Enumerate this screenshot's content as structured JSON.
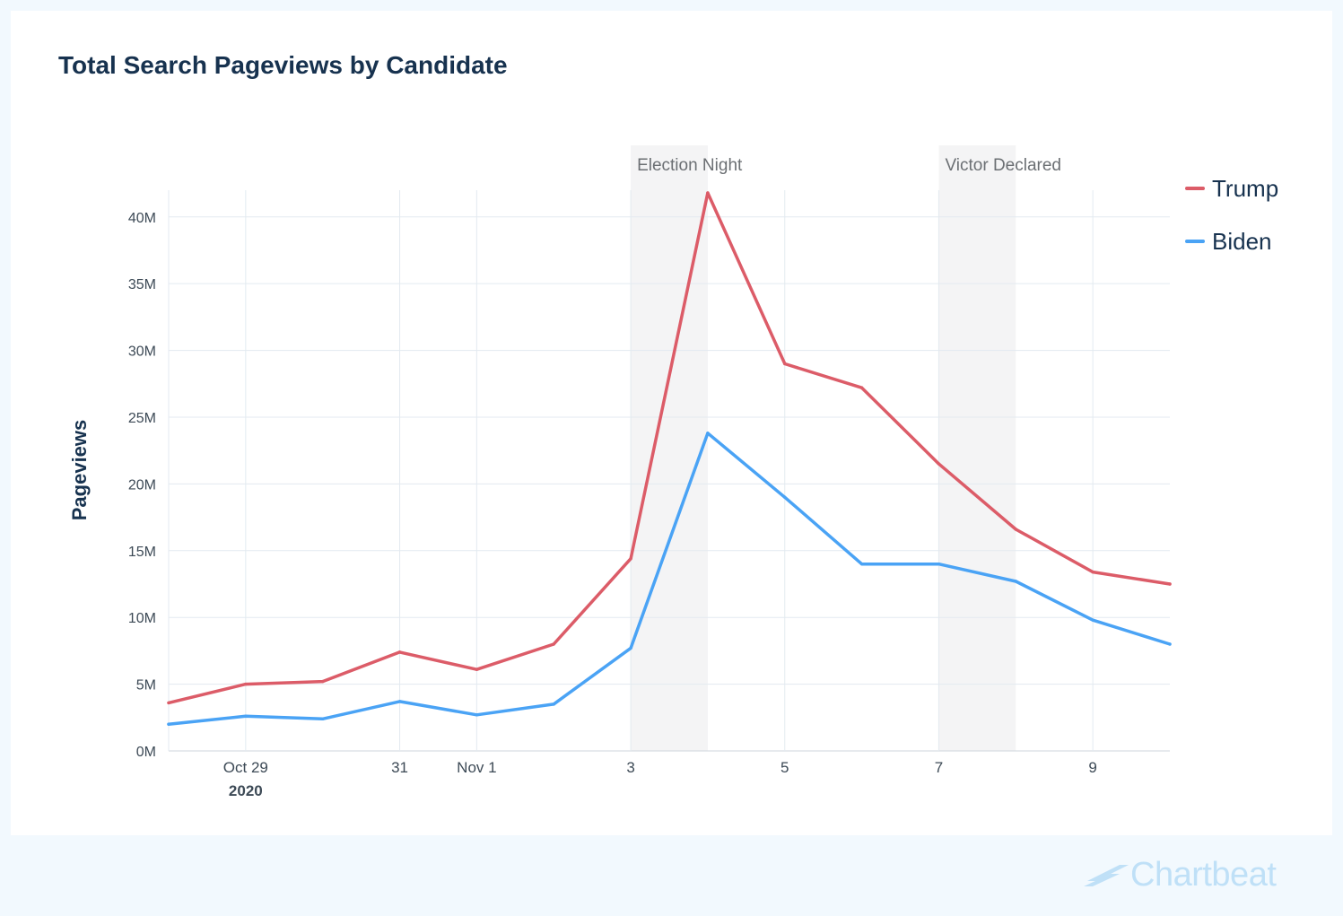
{
  "brand": {
    "name": "Chartbeat"
  },
  "chart_data": {
    "type": "line",
    "title": "Total Search Pageviews by Candidate",
    "ylabel": "Pageviews",
    "xlabel": "",
    "ylim": [
      0,
      42
    ],
    "y_unit_suffix": "M",
    "yticks": [
      0,
      5,
      10,
      15,
      20,
      25,
      30,
      35,
      40
    ],
    "ytick_labels": [
      "0M",
      "5M",
      "10M",
      "15M",
      "20M",
      "25M",
      "30M",
      "35M",
      "40M"
    ],
    "x": [
      "Oct 28",
      "Oct 29",
      "Oct 30",
      "Oct 31",
      "Nov 1",
      "Nov 2",
      "Nov 3",
      "Nov 4",
      "Nov 5",
      "Nov 6",
      "Nov 7",
      "Nov 8",
      "Nov 9",
      "Nov 10"
    ],
    "x_tick_labels": [
      {
        "x": "Oct 29",
        "label": "Oct 29",
        "sub": "2020"
      },
      {
        "x": "Oct 31",
        "label": "31",
        "sub": ""
      },
      {
        "x": "Nov 1",
        "label": "Nov 1",
        "sub": ""
      },
      {
        "x": "Nov 3",
        "label": "3",
        "sub": ""
      },
      {
        "x": "Nov 5",
        "label": "5",
        "sub": ""
      },
      {
        "x": "Nov 7",
        "label": "7",
        "sub": ""
      },
      {
        "x": "Nov 9",
        "label": "9",
        "sub": ""
      }
    ],
    "series": [
      {
        "name": "Trump",
        "color": "#dc5c68",
        "values": [
          3.6,
          5.0,
          5.2,
          7.4,
          6.1,
          8.0,
          14.4,
          41.8,
          29.0,
          27.2,
          21.5,
          16.6,
          13.4,
          12.5
        ]
      },
      {
        "name": "Biden",
        "color": "#4aa3f5",
        "values": [
          2.0,
          2.6,
          2.4,
          3.7,
          2.7,
          3.5,
          7.7,
          23.8,
          19.0,
          14.0,
          14.0,
          12.7,
          9.8,
          8.0
        ]
      }
    ],
    "annotations": [
      {
        "label": "Election Night",
        "from": "Nov 3",
        "to": "Nov 4"
      },
      {
        "label": "Victor Declared",
        "from": "Nov 7",
        "to": "Nov 8"
      }
    ],
    "grid": true,
    "legend_position": "right"
  }
}
